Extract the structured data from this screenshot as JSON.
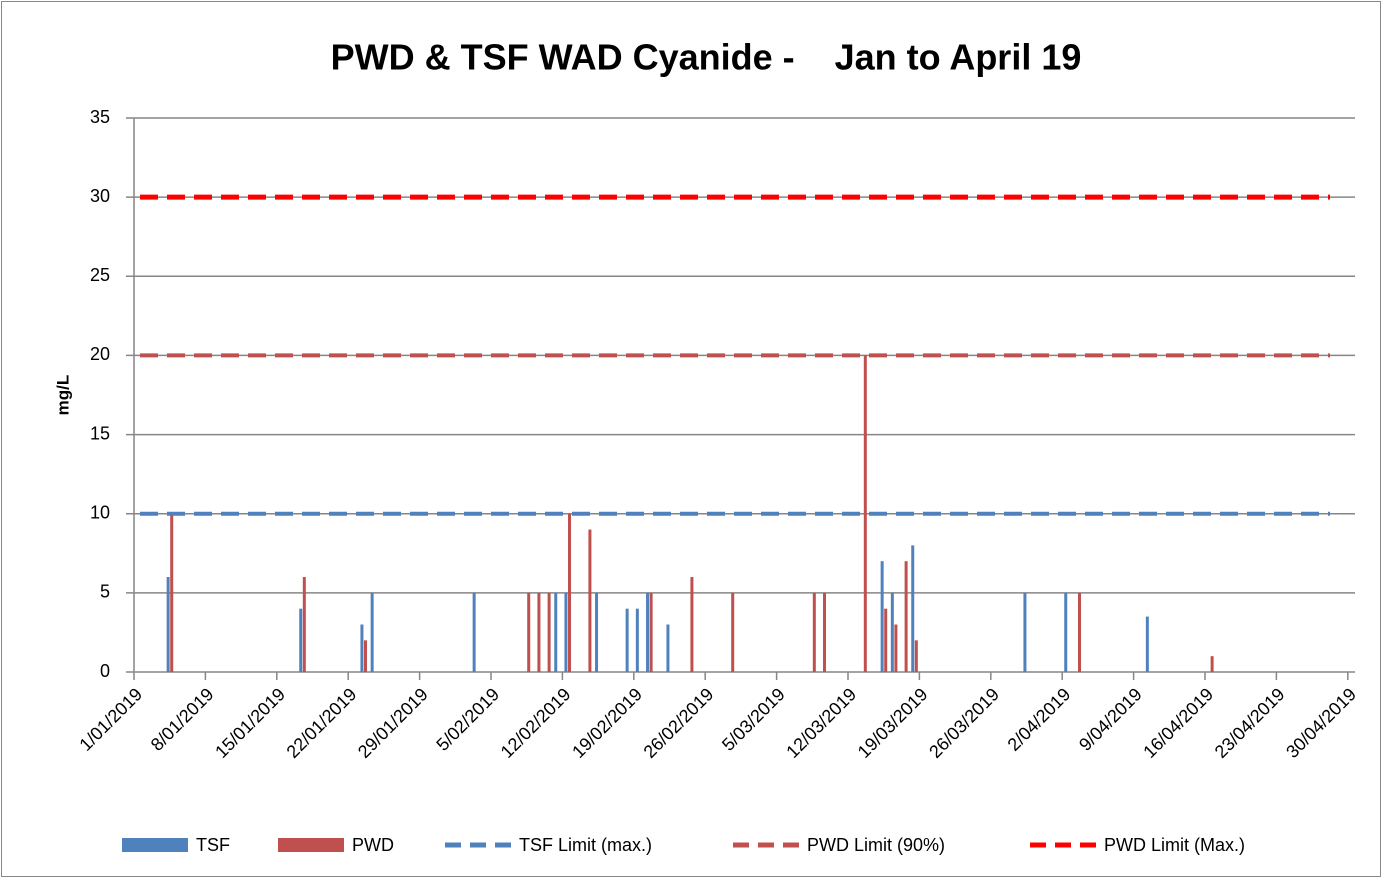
{
  "chart_data": {
    "type": "bar",
    "title": "PWD & TSF WAD Cyanide -    Jan to April 19",
    "y_label": "mg/L",
    "x": [
      "2019-01-04",
      "2019-01-17",
      "2019-01-23",
      "2019-01-24",
      "2019-02-03",
      "2019-02-08",
      "2019-02-09",
      "2019-02-10",
      "2019-02-11",
      "2019-02-12",
      "2019-02-14",
      "2019-02-15",
      "2019-02-18",
      "2019-02-19",
      "2019-02-20",
      "2019-02-22",
      "2019-02-24",
      "2019-02-28",
      "2019-03-08",
      "2019-03-09",
      "2019-03-13",
      "2019-03-15",
      "2019-03-16",
      "2019-03-17",
      "2019-03-18",
      "2019-03-29",
      "2019-04-02",
      "2019-04-03",
      "2019-04-10",
      "2019-04-16"
    ],
    "series": [
      {
        "name": "TSF",
        "color": "#4f81bd",
        "values": [
          6,
          4,
          3,
          5,
          5,
          null,
          null,
          null,
          5,
          5,
          null,
          5,
          4,
          4,
          5,
          3,
          null,
          null,
          null,
          null,
          null,
          7,
          5,
          null,
          8,
          5,
          5,
          null,
          3.5,
          null
        ]
      },
      {
        "name": "PWD",
        "color": "#c0504d",
        "values": [
          10,
          6,
          2,
          null,
          null,
          5,
          5,
          5,
          null,
          10,
          9,
          null,
          null,
          null,
          5,
          null,
          6,
          5,
          5,
          5,
          20,
          4,
          3,
          7,
          2,
          null,
          null,
          5,
          null,
          1
        ]
      }
    ],
    "limits": [
      {
        "name": "TSF Limit (max.)",
        "color": "#4f81bd",
        "value": 10
      },
      {
        "name": "PWD Limit (90%)",
        "color": "#c0504d",
        "value": 20
      },
      {
        "name": "PWD Limit (Max.)",
        "color": "#ff0000",
        "value": 30
      }
    ],
    "xlim": [
      "2019-01-01",
      "2019-05-01"
    ],
    "xticks": [
      {
        "value": "2019-01-01",
        "label": "1/01/2019"
      },
      {
        "value": "2019-01-08",
        "label": "8/01/2019"
      },
      {
        "value": "2019-01-15",
        "label": "15/01/2019"
      },
      {
        "value": "2019-01-22",
        "label": "22/01/2019"
      },
      {
        "value": "2019-01-29",
        "label": "29/01/2019"
      },
      {
        "value": "2019-02-05",
        "label": "5/02/2019"
      },
      {
        "value": "2019-02-12",
        "label": "12/02/2019"
      },
      {
        "value": "2019-02-19",
        "label": "19/02/2019"
      },
      {
        "value": "2019-02-26",
        "label": "26/02/2019"
      },
      {
        "value": "2019-03-05",
        "label": "5/03/2019"
      },
      {
        "value": "2019-03-12",
        "label": "12/03/2019"
      },
      {
        "value": "2019-03-19",
        "label": "19/03/2019"
      },
      {
        "value": "2019-03-26",
        "label": "26/03/2019"
      },
      {
        "value": "2019-04-02",
        "label": "2/04/2019"
      },
      {
        "value": "2019-04-09",
        "label": "9/04/2019"
      },
      {
        "value": "2019-04-16",
        "label": "16/04/2019"
      },
      {
        "value": "2019-04-23",
        "label": "23/04/2019"
      },
      {
        "value": "2019-04-30",
        "label": "30/04/2019"
      }
    ],
    "ylim": [
      0,
      35
    ],
    "yticks": [
      0,
      5,
      10,
      15,
      20,
      25,
      30,
      35
    ],
    "grid": true,
    "legend": "bottom"
  }
}
